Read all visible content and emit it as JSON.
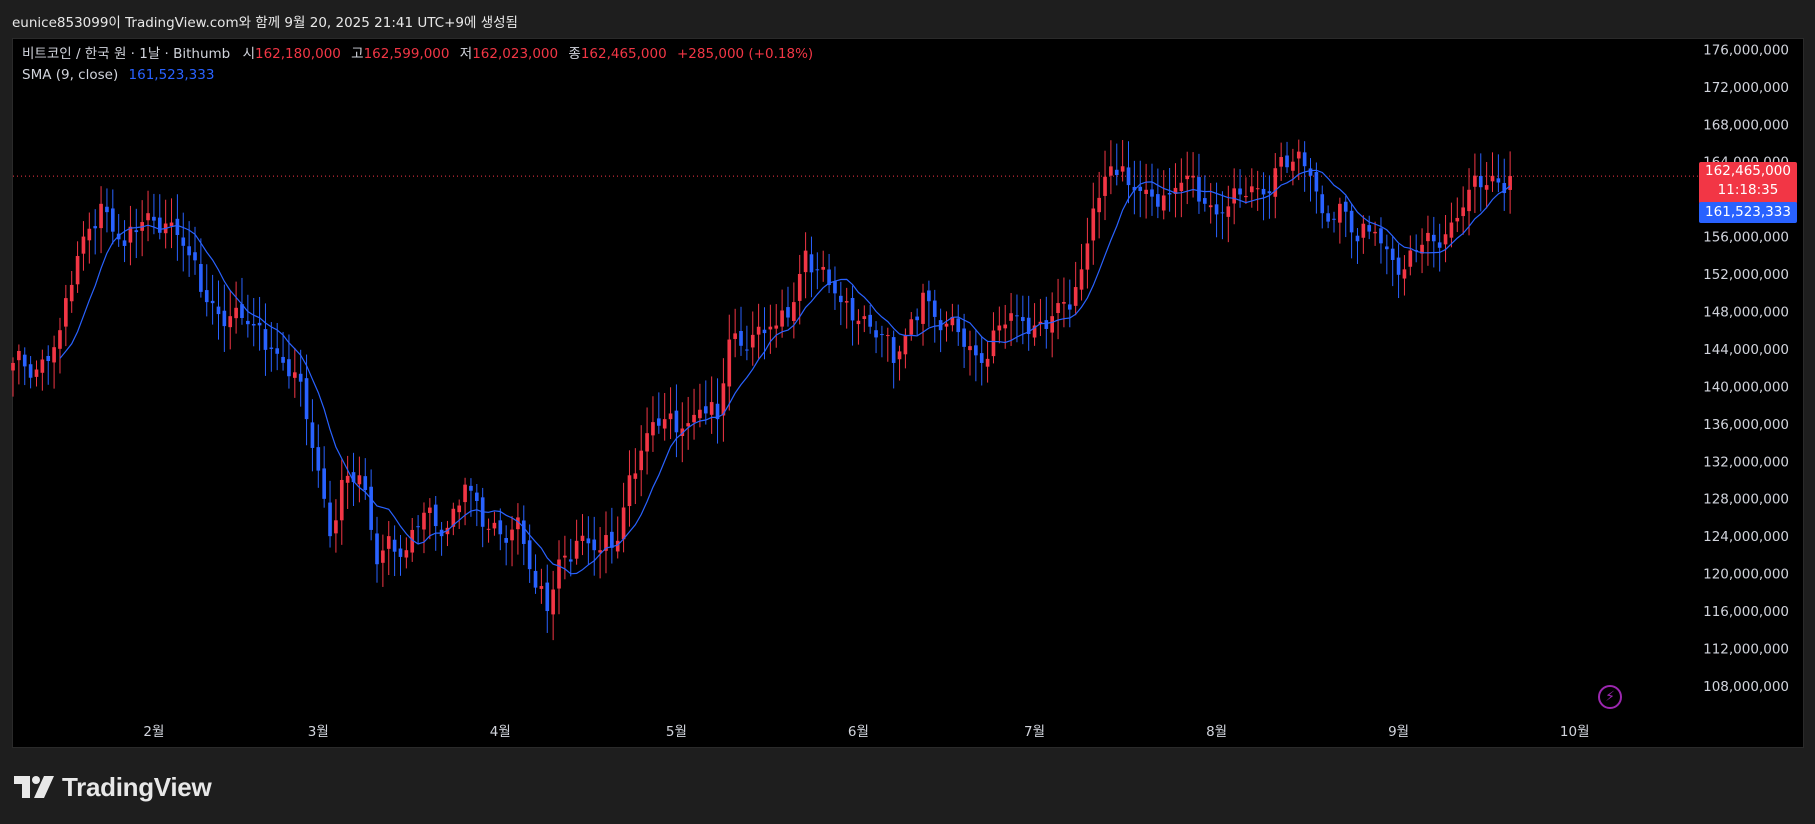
{
  "header": {
    "creator_note": "eunice853099이 TradingView.com와 함께 9월 20, 2025 21:41 UTC+9에 생성됨"
  },
  "legend": {
    "symbol": "비트코인 / 한국 원 · 1날 · Bithumb",
    "open_label": "시",
    "open": "162,180,000",
    "high_label": "고",
    "high": "162,599,000",
    "low_label": "저",
    "low": "162,023,000",
    "close_label": "종",
    "close": "162,465,000",
    "change": "+285,000 (+0.18%)",
    "sma_label": "SMA (9, close)",
    "sma_value": "161,523,333"
  },
  "price_labels": {
    "last_price": "162,465,000",
    "countdown": "11:18:35",
    "sma_price": "161,523,333"
  },
  "footer": {
    "brand": "TradingView"
  },
  "colors": {
    "up": "#f23645",
    "down": "#2962ff",
    "sma": "#2962ff",
    "background": "#000000",
    "lightning": "#9c27b0"
  },
  "icons": {
    "lightning": "lightning-icon",
    "logo": "tradingview-logo-icon"
  },
  "chart_data": {
    "type": "candlestick",
    "title": "비트코인 / 한국 원 · 1날 · Bithumb",
    "ylabel": "",
    "ylim": [
      105000000,
      177000000
    ],
    "yticks": [
      108000000,
      112000000,
      116000000,
      120000000,
      124000000,
      128000000,
      132000000,
      136000000,
      140000000,
      144000000,
      148000000,
      152000000,
      156000000,
      160000000,
      164000000,
      168000000,
      172000000,
      176000000
    ],
    "ytick_labels": [
      "108,000,000",
      "112,000,000",
      "116,000,000",
      "120,000,000",
      "124,000,000",
      "128,000,000",
      "132,000,000",
      "136,000,000",
      "140,000,000",
      "144,000,000",
      "148,000,000",
      "152,000,000",
      "156,000,000",
      "160,000,000",
      "164,000,000",
      "168,000,000",
      "172,000,000",
      "176,000,000"
    ],
    "x_tick_labels": [
      "2월",
      "3월",
      "4월",
      "5월",
      "6월",
      "7월",
      "8월",
      "9월",
      "10월"
    ],
    "x_tick_dates": [
      "2025-02-01",
      "2025-03-01",
      "2025-04-01",
      "2025-05-01",
      "2025-06-01",
      "2025-07-01",
      "2025-08-01",
      "2025-09-01",
      "2025-10-01"
    ],
    "x_range": [
      "2025-01-08",
      "2025-10-22"
    ],
    "last_price": 162465000,
    "sma_period": 9,
    "sma_last": 161523333,
    "series": [
      {
        "name": "BTC/KRW",
        "anchors": [
          [
            "2025-01-08",
            142500000
          ],
          [
            "2025-01-12",
            141800000
          ],
          [
            "2025-01-16",
            146000000
          ],
          [
            "2025-01-20",
            156000000
          ],
          [
            "2025-01-23",
            159500000
          ],
          [
            "2025-01-27",
            155000000
          ],
          [
            "2025-01-31",
            158500000
          ],
          [
            "2025-02-04",
            157500000
          ],
          [
            "2025-02-07",
            154000000
          ],
          [
            "2025-02-10",
            149000000
          ],
          [
            "2025-02-14",
            147500000
          ],
          [
            "2025-02-18",
            146500000
          ],
          [
            "2025-02-21",
            144000000
          ],
          [
            "2025-02-25",
            141500000
          ],
          [
            "2025-02-27",
            136500000
          ],
          [
            "2025-03-01",
            131000000
          ],
          [
            "2025-03-03",
            124000000
          ],
          [
            "2025-03-05",
            130000000
          ],
          [
            "2025-03-08",
            130500000
          ],
          [
            "2025-03-11",
            121000000
          ],
          [
            "2025-03-13",
            124000000
          ],
          [
            "2025-03-16",
            122500000
          ],
          [
            "2025-03-19",
            126500000
          ],
          [
            "2025-03-22",
            124000000
          ],
          [
            "2025-03-26",
            129500000
          ],
          [
            "2025-03-29",
            125000000
          ],
          [
            "2025-04-01",
            124200000
          ],
          [
            "2025-04-04",
            126000000
          ],
          [
            "2025-04-07",
            118500000
          ],
          [
            "2025-04-09",
            116000000
          ],
          [
            "2025-04-11",
            121500000
          ],
          [
            "2025-04-14",
            123500000
          ],
          [
            "2025-04-18",
            122500000
          ],
          [
            "2025-04-21",
            123500000
          ],
          [
            "2025-04-23",
            130500000
          ],
          [
            "2025-04-26",
            135000000
          ],
          [
            "2025-04-29",
            136500000
          ],
          [
            "2025-05-02",
            135500000
          ],
          [
            "2025-05-05",
            137500000
          ],
          [
            "2025-05-08",
            136500000
          ],
          [
            "2025-05-10",
            145000000
          ],
          [
            "2025-05-14",
            145500000
          ],
          [
            "2025-05-18",
            146500000
          ],
          [
            "2025-05-21",
            149000000
          ],
          [
            "2025-05-23",
            154500000
          ],
          [
            "2025-05-25",
            152500000
          ],
          [
            "2025-05-29",
            149000000
          ],
          [
            "2025-06-02",
            147500000
          ],
          [
            "2025-06-05",
            145500000
          ],
          [
            "2025-06-07",
            142500000
          ],
          [
            "2025-06-09",
            145500000
          ],
          [
            "2025-06-12",
            150000000
          ],
          [
            "2025-06-15",
            146000000
          ],
          [
            "2025-06-18",
            145800000
          ],
          [
            "2025-06-22",
            142500000
          ],
          [
            "2025-06-25",
            146500000
          ],
          [
            "2025-06-28",
            147500000
          ],
          [
            "2025-07-01",
            146500000
          ],
          [
            "2025-07-04",
            147500000
          ],
          [
            "2025-07-07",
            148200000
          ],
          [
            "2025-07-09",
            152500000
          ],
          [
            "2025-07-11",
            159000000
          ],
          [
            "2025-07-14",
            163500000
          ],
          [
            "2025-07-17",
            161500000
          ],
          [
            "2025-07-20",
            161000000
          ],
          [
            "2025-07-24",
            160500000
          ],
          [
            "2025-07-27",
            162500000
          ],
          [
            "2025-07-30",
            159500000
          ],
          [
            "2025-08-02",
            158500000
          ],
          [
            "2025-08-05",
            160500000
          ],
          [
            "2025-08-09",
            160500000
          ],
          [
            "2025-08-12",
            164500000
          ],
          [
            "2025-08-14",
            164000000
          ],
          [
            "2025-08-17",
            162500000
          ],
          [
            "2025-08-19",
            158500000
          ],
          [
            "2025-08-22",
            159500000
          ],
          [
            "2025-08-25",
            155500000
          ],
          [
            "2025-08-28",
            156500000
          ],
          [
            "2025-08-31",
            153500000
          ],
          [
            "2025-09-02",
            152500000
          ],
          [
            "2025-09-04",
            154500000
          ],
          [
            "2025-09-07",
            155500000
          ],
          [
            "2025-09-10",
            157500000
          ],
          [
            "2025-09-13",
            161000000
          ],
          [
            "2025-09-16",
            161500000
          ],
          [
            "2025-09-20",
            162465000
          ]
        ]
      }
    ]
  }
}
